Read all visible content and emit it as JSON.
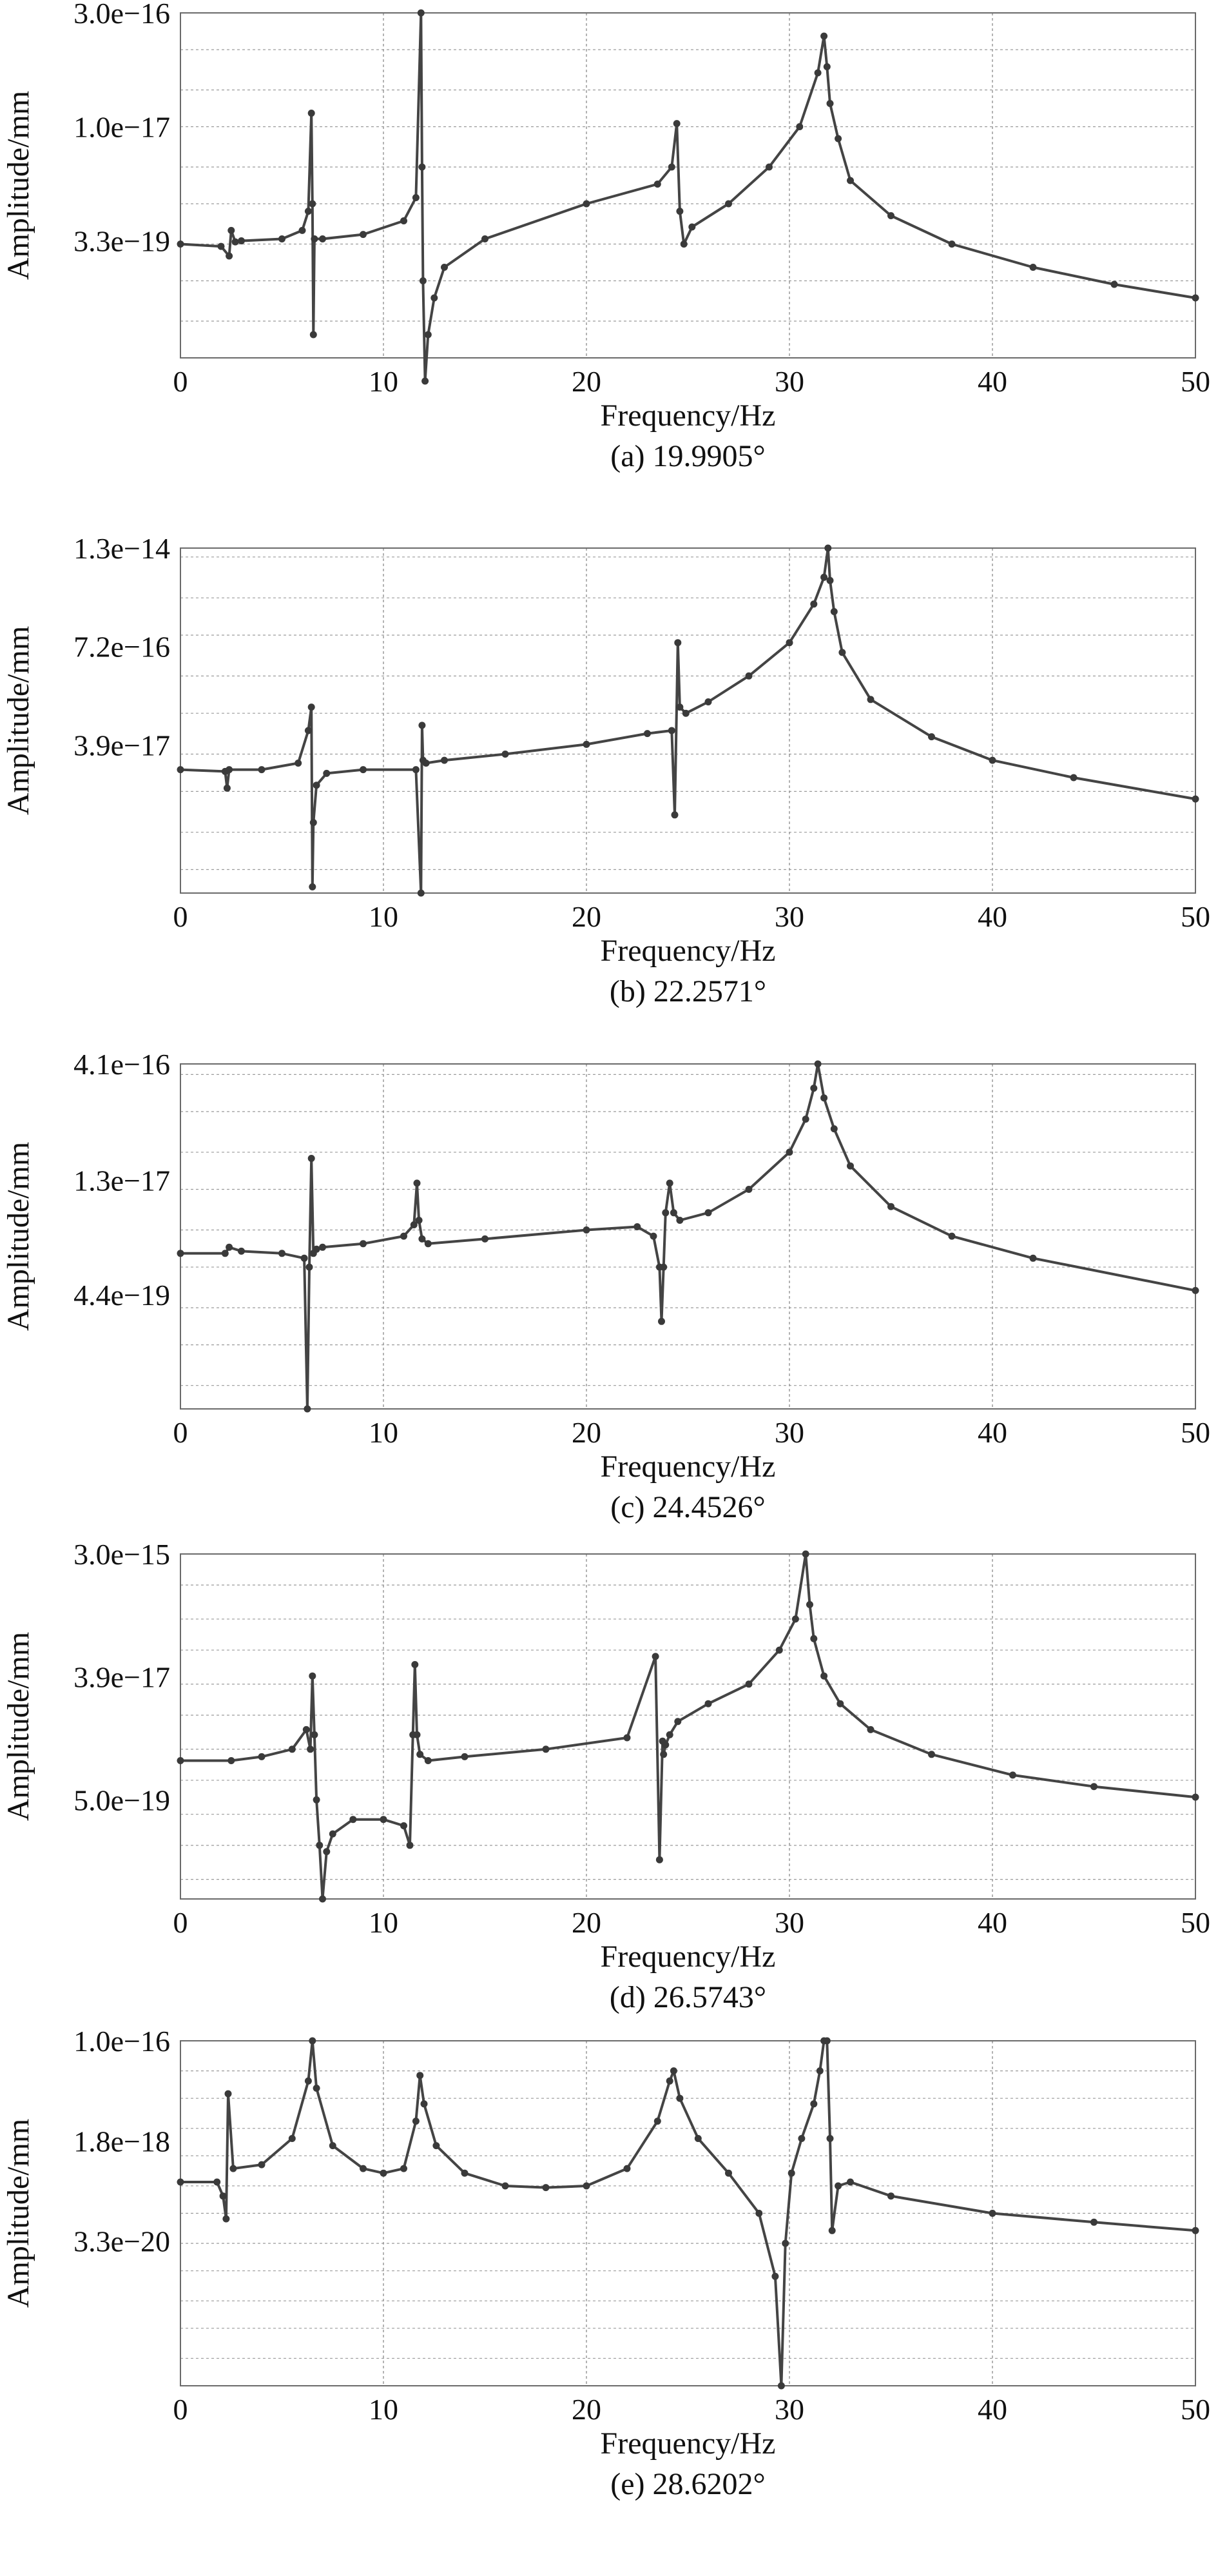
{
  "colors": {
    "line": "#444444",
    "marker": "#3a3a3a",
    "frame": "#6a6a6a",
    "grid": "#9a9a9a",
    "text": "#111111"
  },
  "chart_data": [
    {
      "type": "line",
      "panel": "a",
      "caption": "(a) 19.9905°",
      "xlabel": "Frequency/Hz",
      "ylabel": "Amplitude/mm",
      "xlim": [
        0,
        50
      ],
      "xticks": [
        "0",
        "10",
        "20",
        "30",
        "40",
        "50"
      ],
      "yscale": "log",
      "ylim": [
        1e-20,
        3e-16
      ],
      "yticks": [
        {
          "value": 3e-16,
          "label": "3.0e−16"
        },
        {
          "value": 1e-17,
          "label": "1.0e−17"
        },
        {
          "value": 3.3e-19,
          "label": "3.3e−19"
        }
      ],
      "grid": true,
      "series": [
        {
          "name": "amplitude",
          "x": [
            0,
            2.0,
            2.4,
            2.5,
            2.7,
            3,
            5,
            6.0,
            6.3,
            6.45,
            6.5,
            6.55,
            6.6,
            7,
            9,
            11,
            11.6,
            11.85,
            11.9,
            11.95,
            12.05,
            12.2,
            12.5,
            13,
            15,
            20,
            23.5,
            24.2,
            24.45,
            24.6,
            24.8,
            25.2,
            27,
            29,
            30.5,
            31.4,
            31.7,
            31.85,
            32.0,
            32.4,
            33,
            35,
            38,
            42,
            46,
            50
          ],
          "y": [
            3e-19,
            2.8e-19,
            2.1e-19,
            4.5e-19,
            3.2e-19,
            3.3e-19,
            3.5e-19,
            4.5e-19,
            8e-19,
            1.5e-17,
            1e-18,
            2e-20,
            3.5e-19,
            3.5e-19,
            4e-19,
            6e-19,
            1.2e-18,
            3e-16,
            3e-18,
            1e-19,
            5e-21,
            2e-20,
            6e-20,
            1.5e-19,
            3.5e-19,
            1e-18,
            1.8e-18,
            3e-18,
            1.1e-17,
            8e-19,
            3e-19,
            5e-19,
            1e-18,
            3e-18,
            1e-17,
            5e-17,
            1.5e-16,
            6e-17,
            2e-17,
            7e-18,
            2e-18,
            7e-19,
            3e-19,
            1.5e-19,
            9e-20,
            6e-20
          ]
        }
      ]
    },
    {
      "type": "line",
      "panel": "b",
      "caption": "(b) 22.2571°",
      "xlabel": "Frequency/Hz",
      "ylabel": "Amplitude/mm",
      "xlim": [
        0,
        50
      ],
      "xticks": [
        "0",
        "10",
        "20",
        "30",
        "40",
        "50"
      ],
      "yscale": "log",
      "ylim": [
        5e-19,
        1.3e-14
      ],
      "yticks": [
        {
          "value": 1.3e-14,
          "label": "1.3e−14"
        },
        {
          "value": 7.2e-16,
          "label": "7.2e−16"
        },
        {
          "value": 3.9e-17,
          "label": "3.9e−17"
        }
      ],
      "grid": true,
      "series": [
        {
          "name": "amplitude",
          "x": [
            0,
            2.2,
            2.3,
            2.4,
            4,
            5.8,
            6.3,
            6.45,
            6.5,
            6.55,
            6.7,
            7.2,
            9,
            11.6,
            11.85,
            11.9,
            11.95,
            12.1,
            13,
            16,
            20,
            23,
            24.2,
            24.35,
            24.5,
            24.6,
            24.9,
            26,
            28,
            30,
            31.2,
            31.7,
            31.9,
            32.0,
            32.2,
            32.6,
            34,
            37,
            40,
            44,
            50
          ],
          "y": [
            1.9e-17,
            1.8e-17,
            1.1e-17,
            1.9e-17,
            1.9e-17,
            2.3e-17,
            6e-17,
            1.2e-16,
            6e-19,
            4e-18,
            1.2e-17,
            1.7e-17,
            1.9e-17,
            1.9e-17,
            5e-19,
            7e-17,
            2.5e-17,
            2.3e-17,
            2.5e-17,
            3e-17,
            4e-17,
            5.5e-17,
            6e-17,
            5e-18,
            8e-16,
            1.2e-16,
            1e-16,
            1.4e-16,
            3e-16,
            8e-16,
            2.5e-15,
            5.5e-15,
            1.3e-14,
            5e-15,
            2e-15,
            6e-16,
            1.5e-16,
            5e-17,
            2.5e-17,
            1.5e-17,
            8e-18
          ]
        }
      ]
    },
    {
      "type": "line",
      "panel": "c",
      "caption": "(c) 24.4526°",
      "xlabel": "Frequency/Hz",
      "ylabel": "Amplitude/mm",
      "xlim": [
        0,
        50
      ],
      "xticks": [
        "0",
        "10",
        "20",
        "30",
        "40",
        "50"
      ],
      "yscale": "log",
      "ylim": [
        1.5e-20,
        4.1e-16
      ],
      "yticks": [
        {
          "value": 4.1e-16,
          "label": "4.1e−16"
        },
        {
          "value": 1.3e-17,
          "label": "1.3e−17"
        },
        {
          "value": 4.4e-19,
          "label": "4.4e−19"
        }
      ],
      "grid": true,
      "series": [
        {
          "name": "amplitude",
          "x": [
            0,
            2.2,
            2.4,
            3,
            5,
            6.1,
            6.25,
            6.35,
            6.45,
            6.55,
            6.7,
            7,
            9,
            11,
            11.5,
            11.65,
            11.75,
            11.9,
            12.2,
            15,
            20,
            22.5,
            23.3,
            23.6,
            23.7,
            23.8,
            23.9,
            24.1,
            24.3,
            24.6,
            26,
            28,
            30,
            30.8,
            31.2,
            31.4,
            31.7,
            32.2,
            33,
            35,
            38,
            42,
            50
          ],
          "y": [
            1.5e-18,
            1.5e-18,
            1.8e-18,
            1.6e-18,
            1.5e-18,
            1.3e-18,
            1.5e-20,
            1e-18,
            2.5e-17,
            1.5e-18,
            1.7e-18,
            1.8e-18,
            2e-18,
            2.5e-18,
            3.5e-18,
            1.2e-17,
            4e-18,
            2.3e-18,
            2e-18,
            2.3e-18,
            3e-18,
            3.3e-18,
            2.5e-18,
            1e-18,
            2e-19,
            1e-18,
            5e-18,
            1.2e-17,
            5e-18,
            4e-18,
            5e-18,
            1e-17,
            3e-17,
            8e-17,
            2e-16,
            4.1e-16,
            1.5e-16,
            6e-17,
            2e-17,
            6e-18,
            2.5e-18,
            1.3e-18,
            5e-19
          ]
        }
      ]
    },
    {
      "type": "line",
      "panel": "d",
      "caption": "(d) 26.5743°",
      "xlabel": "Frequency/Hz",
      "ylabel": "Amplitude/mm",
      "xlim": [
        0,
        50
      ],
      "xticks": [
        "0",
        "10",
        "20",
        "30",
        "40",
        "50"
      ],
      "yscale": "log",
      "ylim": [
        1.5e-20,
        3e-15
      ],
      "yticks": [
        {
          "value": 3e-15,
          "label": "3.0e−15"
        },
        {
          "value": 3.9e-17,
          "label": "3.9e−17"
        },
        {
          "value": 5e-19,
          "label": "5.0e−19"
        }
      ],
      "grid": true,
      "series": [
        {
          "name": "amplitude",
          "x": [
            0,
            2.5,
            4,
            5.5,
            6.2,
            6.4,
            6.5,
            6.6,
            6.7,
            6.85,
            7.0,
            7.2,
            7.5,
            8.5,
            10,
            11,
            11.3,
            11.45,
            11.55,
            11.65,
            11.8,
            12.2,
            14,
            18,
            22,
            23.4,
            23.6,
            23.75,
            23.8,
            23.9,
            24.1,
            24.5,
            26,
            28,
            29.5,
            30.3,
            30.8,
            31.0,
            31.2,
            31.7,
            32.5,
            34,
            37,
            41,
            45,
            50
          ],
          "y": [
            2e-18,
            2e-18,
            2.3e-18,
            3e-18,
            6e-18,
            3e-18,
            4e-17,
            5e-18,
            5e-19,
            1e-19,
            1.5e-20,
            8e-20,
            1.5e-19,
            2.5e-19,
            2.5e-19,
            2e-19,
            1e-19,
            5e-18,
            6e-17,
            5e-18,
            2.5e-18,
            2e-18,
            2.3e-18,
            3e-18,
            4.5e-18,
            8e-17,
            6e-20,
            4e-18,
            2.5e-18,
            3.5e-18,
            5e-18,
            8e-18,
            1.5e-17,
            3e-17,
            1e-16,
            3e-16,
            3e-15,
            5e-16,
            1.5e-16,
            4e-17,
            1.5e-17,
            6e-18,
            2.5e-18,
            1.2e-18,
            8e-19,
            5.5e-19
          ]
        }
      ]
    },
    {
      "type": "line",
      "panel": "e",
      "caption": "(e) 28.6202°",
      "xlabel": "Frequency/Hz",
      "ylabel": "Amplitude/mm",
      "xlim": [
        0,
        50
      ],
      "xticks": [
        "0",
        "10",
        "20",
        "30",
        "40",
        "50"
      ],
      "yscale": "log",
      "ylim": [
        1e-22,
        1e-16
      ],
      "yticks": [
        {
          "value": 1e-16,
          "label": "1.0e−16"
        },
        {
          "value": 1.8e-18,
          "label": "1.8e−18"
        },
        {
          "value": 3.3e-20,
          "label": "3.3e−20"
        }
      ],
      "grid": true,
      "series": [
        {
          "name": "amplitude",
          "x": [
            0,
            1.8,
            2.1,
            2.25,
            2.35,
            2.6,
            4,
            5.5,
            6.3,
            6.5,
            6.7,
            7.5,
            9,
            10,
            11,
            11.6,
            11.8,
            12.0,
            12.6,
            14,
            16,
            18,
            20,
            22,
            23.5,
            24.1,
            24.3,
            24.6,
            25.5,
            27,
            28.5,
            29.3,
            29.6,
            29.8,
            30.1,
            30.6,
            31.2,
            31.5,
            31.7,
            31.85,
            32.0,
            32.1,
            32.4,
            33,
            35,
            40,
            45,
            50
          ],
          "y": [
            3.5e-19,
            3.5e-19,
            2e-19,
            8e-20,
            1.2e-17,
            6e-19,
            7e-19,
            2e-18,
            2e-17,
            1e-16,
            1.5e-17,
            1.5e-18,
            6e-19,
            5e-19,
            6e-19,
            4e-18,
            2.5e-17,
            8e-18,
            1.5e-18,
            5e-19,
            3e-19,
            2.8e-19,
            3e-19,
            6e-19,
            4e-18,
            2e-17,
            3e-17,
            1e-17,
            2e-18,
            5e-19,
            1e-19,
            8e-21,
            1e-22,
            3e-20,
            5e-19,
            2e-18,
            8e-18,
            3e-17,
            1e-16,
            1e-16,
            2e-18,
            5e-20,
            3e-19,
            3.5e-19,
            2e-19,
            1e-19,
            7e-20,
            5e-20
          ]
        }
      ]
    }
  ]
}
